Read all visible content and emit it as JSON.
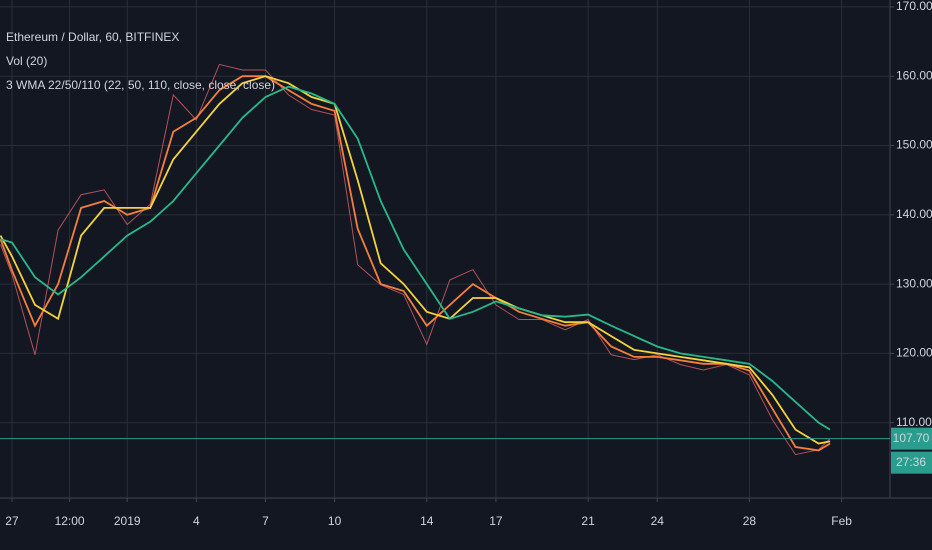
{
  "chart_data": {
    "type": "line",
    "title": "Ethereum / Dollar, 60, BITFINEX",
    "indicators": [
      "Vol (20)",
      "3 WMA 22/50/110 (22, 50, 110, close, close, close)"
    ],
    "x": [
      -0.5,
      0,
      1,
      2,
      3,
      4,
      5,
      6,
      7,
      8,
      9,
      10,
      11,
      12,
      13,
      14,
      15,
      16,
      17,
      18,
      19,
      20,
      21,
      22,
      23,
      24,
      25,
      26,
      27,
      28,
      29,
      30,
      31,
      32,
      33,
      34,
      35,
      35.5
    ],
    "series": [
      {
        "color": "#b2515a",
        "values": [
          135.7,
          131.4,
          119.8,
          137.8,
          142.9,
          143.6,
          138.6,
          141.5,
          157.3,
          153.7,
          161.7,
          160.9,
          160.9,
          157.3,
          155.2,
          154.4,
          132.8,
          129.9,
          128.5,
          121.3,
          130.6,
          132.1,
          127.0,
          124.9,
          124.9,
          123.4,
          124.9,
          119.8,
          119.1,
          119.8,
          118.4,
          117.6,
          118.4,
          116.9,
          110.4,
          105.4,
          106.1,
          107.7
        ]
      },
      {
        "color": "#f57f3a",
        "values": [
          136.5,
          132,
          124,
          130,
          141,
          142,
          140,
          141,
          152,
          154,
          158,
          160,
          160,
          158,
          156,
          155,
          138,
          130,
          129,
          124,
          127,
          130,
          128,
          126,
          125,
          124,
          124.5,
          121,
          119.5,
          119.5,
          119,
          118.5,
          118.5,
          117.5,
          112,
          106.5,
          106,
          107
        ]
      },
      {
        "color": "#f5d33a",
        "values": [
          137,
          134,
          127,
          125,
          137,
          141,
          141,
          141,
          148,
          152,
          156,
          159,
          160,
          159,
          157,
          156,
          145,
          133,
          130,
          126,
          125,
          128,
          128,
          126.5,
          125.5,
          124.5,
          124.5,
          122.5,
          120.5,
          120,
          119.5,
          119,
          118.5,
          118,
          114,
          109,
          107,
          107.3
        ]
      },
      {
        "color": "#26b98a",
        "values": [
          136.5,
          136,
          131,
          128.5,
          131,
          134,
          137,
          139,
          142,
          146,
          150,
          154,
          157,
          158.5,
          157.5,
          156,
          151,
          142,
          135,
          130,
          125,
          126,
          127.5,
          126.5,
          125.5,
          125.3,
          125.6,
          124,
          122.5,
          121,
          120,
          119.5,
          119,
          118.5,
          116,
          113,
          110,
          109
        ]
      }
    ],
    "xlim": [
      -0.52,
      38.1
    ],
    "xticks": [
      {
        "value": 0,
        "label": "27"
      },
      {
        "value": 2.5,
        "label": "12:00"
      },
      {
        "value": 5,
        "label": "2019"
      },
      {
        "value": 8,
        "label": "4"
      },
      {
        "value": 11,
        "label": "7"
      },
      {
        "value": 14,
        "label": "10"
      },
      {
        "value": 18,
        "label": "14"
      },
      {
        "value": 21,
        "label": "17"
      },
      {
        "value": 25,
        "label": "21"
      },
      {
        "value": 28,
        "label": "24"
      },
      {
        "value": 32,
        "label": "28"
      },
      {
        "value": 36,
        "label": "Feb"
      }
    ],
    "ylim": [
      100,
      171
    ],
    "yticks": [
      {
        "value": 110,
        "label": "110.00"
      },
      {
        "value": 120,
        "label": "120.00"
      },
      {
        "value": 130,
        "label": "130.00"
      },
      {
        "value": 140,
        "label": "140.00"
      },
      {
        "value": 150,
        "label": "150.00"
      },
      {
        "value": 160,
        "label": "160.00"
      },
      {
        "value": 170,
        "label": "170.00"
      }
    ],
    "last_price": {
      "value": 107.7,
      "label": "107.70",
      "color": "#2a9d8f"
    },
    "countdown": "27:36",
    "grid": true
  }
}
